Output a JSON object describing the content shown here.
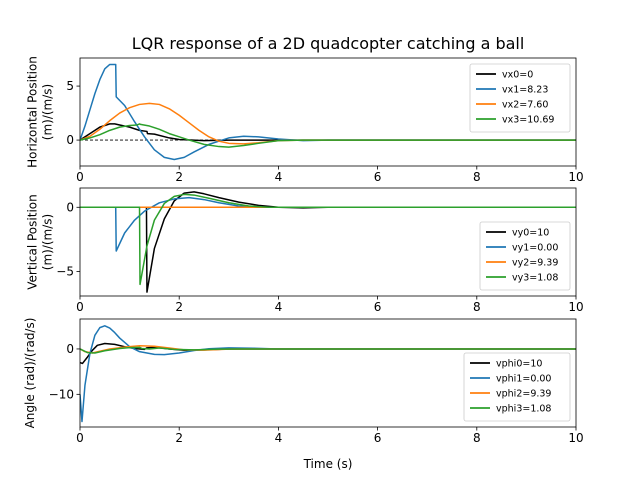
{
  "figure": {
    "title": "LQR response of a 2D quadcopter catching a ball",
    "xlabel": "Time (s)"
  },
  "colors": {
    "c0": "#000000",
    "c1": "#1f77b4",
    "c2": "#ff7f0e",
    "c3": "#2ca02c"
  },
  "chart_data": [
    {
      "type": "line",
      "ylabel": [
        "Horizontal Position",
        "(m)/(m/s)"
      ],
      "xlim": [
        0,
        10
      ],
      "ylim": [
        -2.4,
        7.6
      ],
      "xticks": [
        0,
        2,
        4,
        6,
        8,
        10
      ],
      "yticks": [
        0,
        5
      ],
      "zero_line": true,
      "legend": "top-right",
      "series": [
        {
          "name": "vx0=0",
          "color": "#000000",
          "points": [
            [
              0,
              0
            ],
            [
              0.2,
              0.6
            ],
            [
              0.4,
              1.2
            ],
            [
              0.6,
              1.5
            ],
            [
              0.7,
              1.5
            ],
            [
              0.8,
              1.4
            ],
            [
              1.0,
              1.2
            ],
            [
              1.2,
              0.9
            ],
            [
              1.35,
              0.8
            ],
            [
              1.36,
              0.6
            ],
            [
              1.5,
              0.55
            ],
            [
              1.8,
              0.2
            ],
            [
              2.0,
              0.05
            ],
            [
              2.5,
              -0.05
            ],
            [
              3.0,
              0
            ],
            [
              10,
              0
            ]
          ]
        },
        {
          "name": "vx1=8.23",
          "color": "#1f77b4",
          "points": [
            [
              0,
              0
            ],
            [
              0.1,
              1.3
            ],
            [
              0.2,
              2.8
            ],
            [
              0.3,
              4.3
            ],
            [
              0.4,
              5.6
            ],
            [
              0.5,
              6.6
            ],
            [
              0.6,
              7.0
            ],
            [
              0.72,
              7.0
            ],
            [
              0.73,
              4.0
            ],
            [
              0.9,
              3.2
            ],
            [
              1.1,
              1.7
            ],
            [
              1.3,
              0.3
            ],
            [
              1.5,
              -0.9
            ],
            [
              1.7,
              -1.6
            ],
            [
              1.9,
              -1.8
            ],
            [
              2.1,
              -1.6
            ],
            [
              2.3,
              -1.1
            ],
            [
              2.6,
              -0.4
            ],
            [
              3.0,
              0.2
            ],
            [
              3.3,
              0.35
            ],
            [
              3.6,
              0.3
            ],
            [
              4.0,
              0.1
            ],
            [
              4.5,
              -0.05
            ],
            [
              5.0,
              0
            ],
            [
              10,
              0
            ]
          ]
        },
        {
          "name": "vx2=7.60",
          "color": "#ff7f0e",
          "points": [
            [
              0,
              0
            ],
            [
              0.2,
              0.35
            ],
            [
              0.4,
              1.0
            ],
            [
              0.6,
              1.8
            ],
            [
              0.8,
              2.5
            ],
            [
              1.0,
              3.0
            ],
            [
              1.2,
              3.3
            ],
            [
              1.4,
              3.4
            ],
            [
              1.6,
              3.3
            ],
            [
              1.8,
              2.9
            ],
            [
              2.0,
              2.3
            ],
            [
              2.2,
              1.6
            ],
            [
              2.4,
              0.9
            ],
            [
              2.6,
              0.3
            ],
            [
              2.8,
              -0.1
            ],
            [
              3.0,
              -0.3
            ],
            [
              3.3,
              -0.35
            ],
            [
              3.6,
              -0.25
            ],
            [
              4.0,
              -0.05
            ],
            [
              4.5,
              0
            ],
            [
              10,
              0
            ]
          ]
        },
        {
          "name": "vx3=10.69",
          "color": "#2ca02c",
          "points": [
            [
              0,
              0
            ],
            [
              0.2,
              0.2
            ],
            [
              0.4,
              0.5
            ],
            [
              0.6,
              0.9
            ],
            [
              0.8,
              1.2
            ],
            [
              1.0,
              1.35
            ],
            [
              1.15,
              1.4
            ],
            [
              1.2,
              1.5
            ],
            [
              1.22,
              1.45
            ],
            [
              1.4,
              1.3
            ],
            [
              1.6,
              1.0
            ],
            [
              1.8,
              0.6
            ],
            [
              2.0,
              0.3
            ],
            [
              2.2,
              0
            ],
            [
              2.5,
              -0.4
            ],
            [
              2.8,
              -0.6
            ],
            [
              3.0,
              -0.65
            ],
            [
              3.3,
              -0.5
            ],
            [
              3.6,
              -0.3
            ],
            [
              4.0,
              -0.05
            ],
            [
              4.5,
              0
            ],
            [
              10,
              0
            ]
          ]
        }
      ]
    },
    {
      "type": "line",
      "ylabel": [
        "Vertical Position",
        "(m)/(m/s)"
      ],
      "xlim": [
        0,
        10
      ],
      "ylim": [
        -6.9,
        1.5
      ],
      "xticks": [
        0,
        2,
        4,
        6,
        8,
        10
      ],
      "yticks": [
        -5,
        0
      ],
      "zero_line": false,
      "legend": "bottom-right",
      "series": [
        {
          "name": "vy0=10",
          "color": "#000000",
          "points": [
            [
              0,
              0
            ],
            [
              1.34,
              0
            ],
            [
              1.35,
              -6.6
            ],
            [
              1.5,
              -3.2
            ],
            [
              1.7,
              -0.9
            ],
            [
              1.9,
              0.5
            ],
            [
              2.1,
              1.1
            ],
            [
              2.3,
              1.2
            ],
            [
              2.5,
              1.05
            ],
            [
              2.8,
              0.75
            ],
            [
              3.2,
              0.4
            ],
            [
              3.6,
              0.15
            ],
            [
              4.0,
              0
            ],
            [
              4.5,
              -0.05
            ],
            [
              5.0,
              0
            ],
            [
              10,
              0
            ]
          ]
        },
        {
          "name": "vy1=0.00",
          "color": "#1f77b4",
          "points": [
            [
              0,
              0
            ],
            [
              0.72,
              0
            ],
            [
              0.73,
              -3.4
            ],
            [
              0.9,
              -2.0
            ],
            [
              1.1,
              -1.0
            ],
            [
              1.3,
              -0.3
            ],
            [
              1.6,
              0.35
            ],
            [
              1.9,
              0.65
            ],
            [
              2.2,
              0.75
            ],
            [
              2.5,
              0.6
            ],
            [
              2.8,
              0.35
            ],
            [
              3.2,
              0.1
            ],
            [
              3.6,
              0
            ],
            [
              4.0,
              0
            ],
            [
              10,
              0
            ]
          ]
        },
        {
          "name": "vy2=9.39",
          "color": "#ff7f0e",
          "points": [
            [
              0,
              0
            ],
            [
              10,
              0
            ]
          ]
        },
        {
          "name": "vy3=1.08",
          "color": "#2ca02c",
          "points": [
            [
              0,
              0
            ],
            [
              1.2,
              0
            ],
            [
              1.21,
              -6.0
            ],
            [
              1.35,
              -3.0
            ],
            [
              1.5,
              -1.0
            ],
            [
              1.7,
              0.3
            ],
            [
              1.9,
              0.85
            ],
            [
              2.1,
              1.0
            ],
            [
              2.3,
              0.95
            ],
            [
              2.6,
              0.7
            ],
            [
              3.0,
              0.35
            ],
            [
              3.4,
              0.1
            ],
            [
              3.8,
              0
            ],
            [
              10,
              0
            ]
          ]
        }
      ]
    },
    {
      "type": "line",
      "ylabel": [
        "Angle (rad)/(rad/s)"
      ],
      "xlim": [
        0,
        10
      ],
      "ylim": [
        -17.2,
        6.6
      ],
      "xticks": [
        0,
        2,
        4,
        6,
        8,
        10
      ],
      "yticks": [
        -10,
        0
      ],
      "zero_line": false,
      "legend": "bottom-right",
      "series": [
        {
          "name": "vphi0=10",
          "color": "#000000",
          "points": [
            [
              0,
              -3.0
            ],
            [
              0.05,
              -3.2
            ],
            [
              0.15,
              -1.8
            ],
            [
              0.25,
              -0.3
            ],
            [
              0.35,
              0.8
            ],
            [
              0.5,
              1.2
            ],
            [
              0.7,
              1.0
            ],
            [
              0.9,
              0.5
            ],
            [
              1.1,
              0.1
            ],
            [
              1.3,
              -0.1
            ],
            [
              1.35,
              0.25
            ],
            [
              1.5,
              0.4
            ],
            [
              1.8,
              0
            ],
            [
              2.1,
              -0.3
            ],
            [
              2.5,
              -0.2
            ],
            [
              3.0,
              0
            ],
            [
              10,
              0
            ]
          ]
        },
        {
          "name": "vphi1=0.00",
          "color": "#1f77b4",
          "points": [
            [
              0,
              -10
            ],
            [
              0.04,
              -16.0
            ],
            [
              0.1,
              -8.0
            ],
            [
              0.2,
              -1.0
            ],
            [
              0.3,
              3.0
            ],
            [
              0.4,
              4.7
            ],
            [
              0.5,
              5.1
            ],
            [
              0.6,
              4.6
            ],
            [
              0.7,
              3.6
            ],
            [
              0.8,
              2.4
            ],
            [
              1.0,
              0.5
            ],
            [
              1.2,
              -0.6
            ],
            [
              1.5,
              -1.2
            ],
            [
              1.7,
              -1.25
            ],
            [
              2.0,
              -0.9
            ],
            [
              2.3,
              -0.35
            ],
            [
              2.6,
              0.05
            ],
            [
              3.0,
              0.25
            ],
            [
              3.5,
              0.15
            ],
            [
              4.0,
              0
            ],
            [
              10,
              0
            ]
          ]
        },
        {
          "name": "vphi2=9.39",
          "color": "#ff7f0e",
          "points": [
            [
              0,
              0
            ],
            [
              0.1,
              -0.6
            ],
            [
              0.25,
              -0.9
            ],
            [
              0.4,
              -0.5
            ],
            [
              0.6,
              0
            ],
            [
              0.9,
              0.4
            ],
            [
              1.2,
              0.7
            ],
            [
              1.5,
              0.6
            ],
            [
              1.8,
              0.2
            ],
            [
              2.1,
              -0.2
            ],
            [
              2.5,
              -0.25
            ],
            [
              3.0,
              -0.05
            ],
            [
              3.5,
              0
            ],
            [
              10,
              0
            ]
          ]
        },
        {
          "name": "vphi3=1.08",
          "color": "#2ca02c",
          "points": [
            [
              0,
              0
            ],
            [
              0.15,
              -0.8
            ],
            [
              0.3,
              -0.9
            ],
            [
              0.5,
              -0.4
            ],
            [
              0.8,
              0.1
            ],
            [
              1.0,
              0.3
            ],
            [
              1.2,
              0.35
            ],
            [
              1.25,
              0.1
            ],
            [
              1.4,
              0
            ],
            [
              1.6,
              0.2
            ],
            [
              1.9,
              -0.1
            ],
            [
              2.3,
              -0.2
            ],
            [
              2.8,
              -0.05
            ],
            [
              3.2,
              0
            ],
            [
              10,
              0
            ]
          ]
        }
      ]
    }
  ]
}
